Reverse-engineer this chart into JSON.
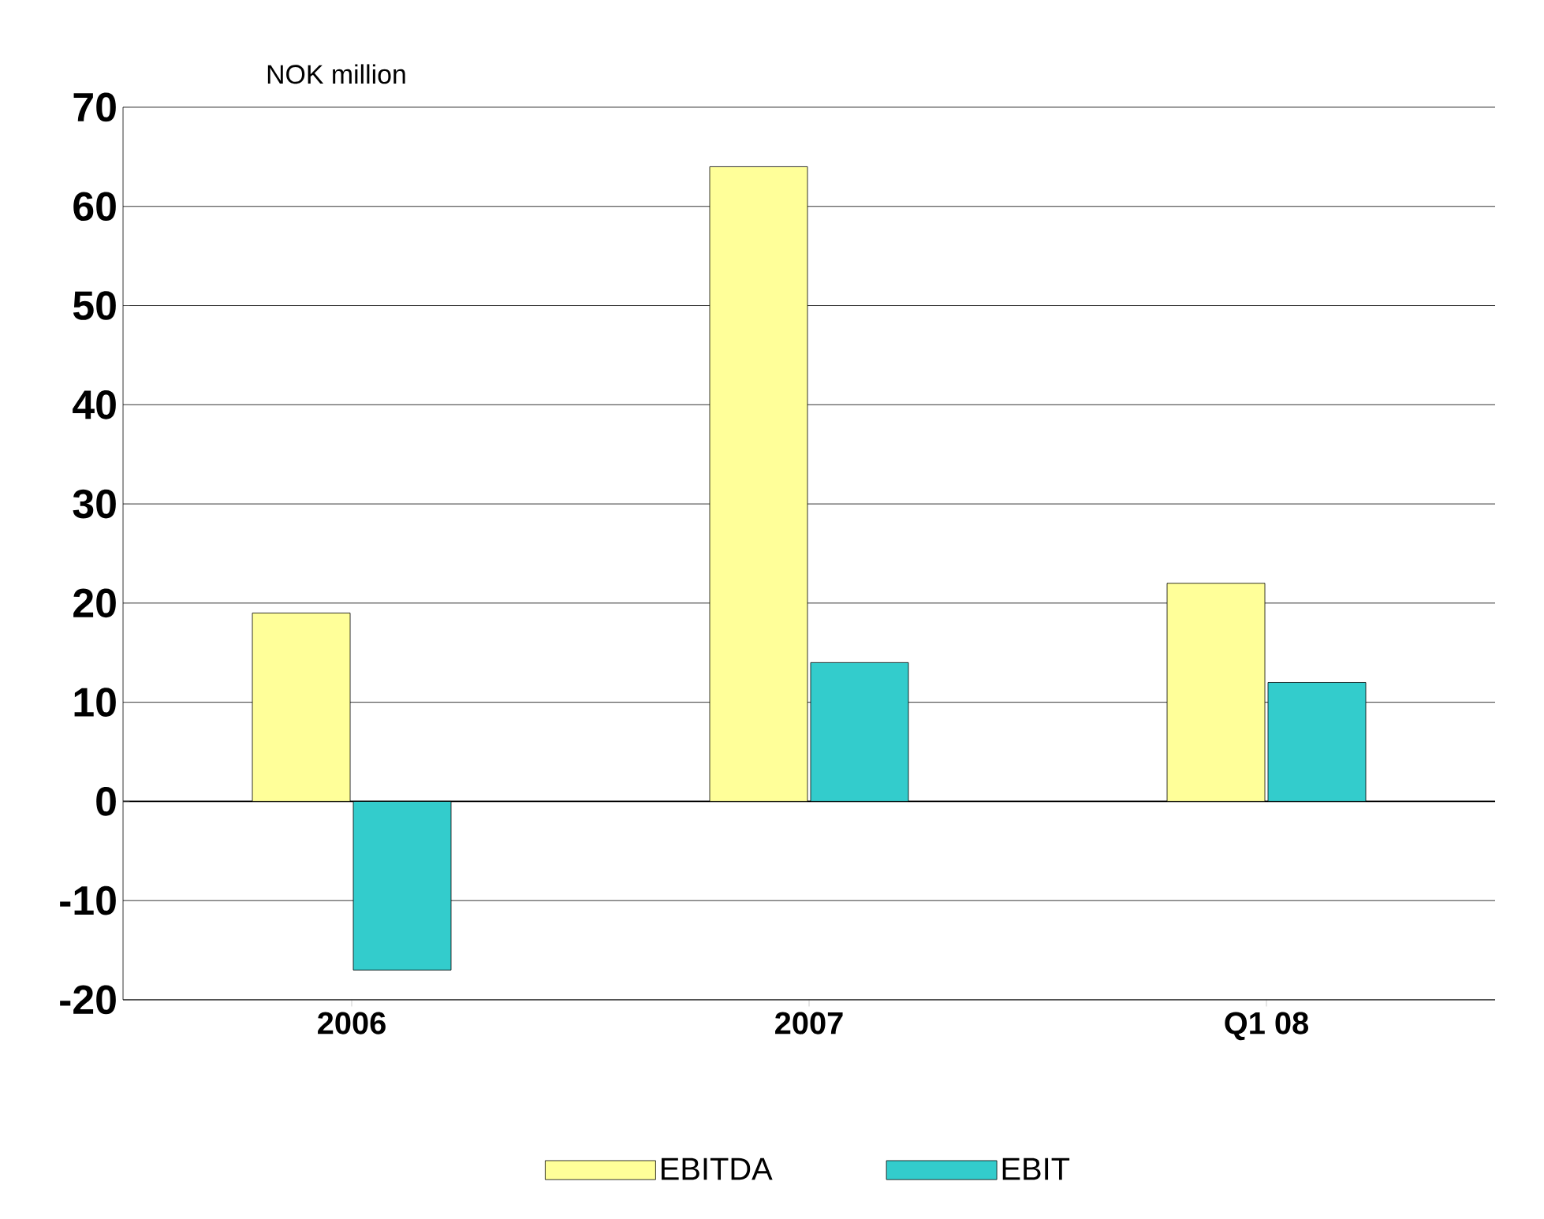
{
  "chart_data": {
    "type": "bar",
    "ylabel": "NOK million",
    "categories": [
      "2006",
      "2007",
      "Q1 08"
    ],
    "series": [
      {
        "name": "EBITDA",
        "color": "#ffff99",
        "values": [
          19,
          64,
          22
        ]
      },
      {
        "name": "EBIT",
        "color": "#33cccc",
        "values": [
          -17,
          14,
          12
        ]
      }
    ],
    "ylim": [
      -20,
      70
    ],
    "yticks": [
      -20,
      -10,
      0,
      10,
      20,
      30,
      40,
      50,
      60,
      70
    ],
    "grid": "y",
    "legend": "bottom"
  }
}
